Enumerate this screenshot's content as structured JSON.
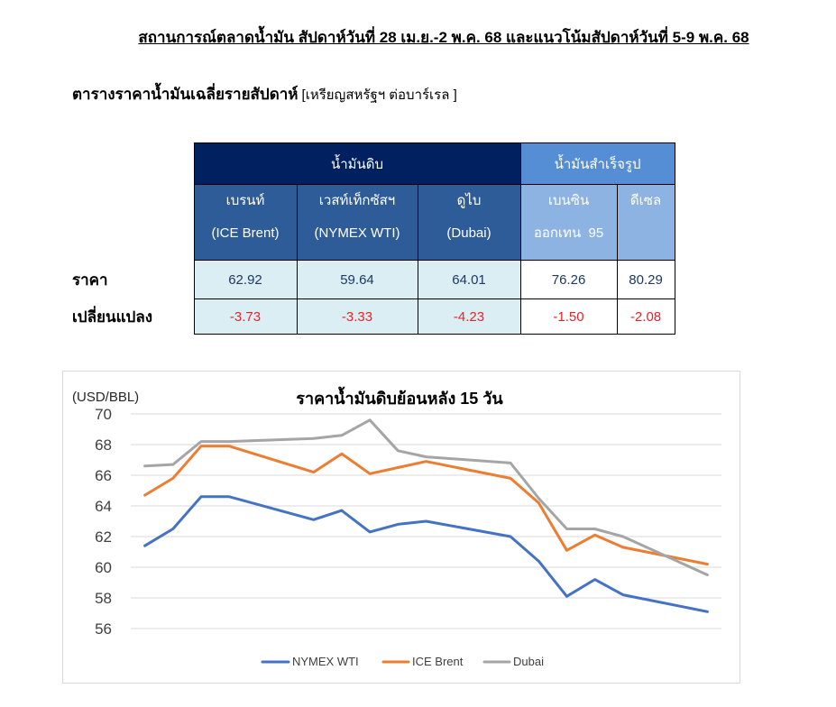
{
  "page": {
    "title": "สถานการณ์ตลาดน้ำมัน สัปดาห์วันที่ 28 เม.ย.-2 พ.ค. 68 และแนวโน้มสัปดาห์วันที่ 5-9 พ.ค. 68"
  },
  "table": {
    "caption": "ตารางราคาน้ำมันเฉลี่ยรายสัปดาห์",
    "unit": "[เหรียญสหรัฐฯ ต่อบาร์เรล ]",
    "groups": [
      {
        "label": "น้ำมันดิบ"
      },
      {
        "label": "น้ำมันสำเร็จรูป"
      }
    ],
    "columns": [
      {
        "line1": "เบรนท์",
        "line2": "(ICE Brent)"
      },
      {
        "line1": "เวสท์เท็กซัสฯ",
        "line2": "(NYMEX WTI)"
      },
      {
        "line1": "ดูไบ",
        "line2": "(Dubai)"
      },
      {
        "line1": "เบนซิน",
        "line2": "ออกเทน  95"
      },
      {
        "line1": "ดีเซล"
      }
    ],
    "rows": [
      {
        "label": "ราคา",
        "values": [
          "62.92",
          "59.64",
          "64.01",
          "76.26",
          "80.29"
        ]
      },
      {
        "label": "เปลี่ยนแปลง",
        "values": [
          "-3.73",
          "-3.33",
          "-4.23",
          "-1.50",
          "-2.08"
        ]
      }
    ],
    "colors": {
      "crude_group": "#002060",
      "refined_group": "#558ed5",
      "crude_column": "#2e5c99",
      "refined_column": "#8db3e2",
      "crude_cell": "#dbeef4",
      "refined_cell": "#ffffff",
      "price_text": "#1f3864",
      "change_text": "#e8232a"
    }
  },
  "chart_data": {
    "type": "line",
    "title": "ราคาน้ำมันดิบย้อนหลัง 15 วัน",
    "ylabel": "(USD/BBL)",
    "ylim": [
      56,
      70
    ],
    "yticks": [
      70,
      68,
      66,
      64,
      62,
      60,
      58,
      56
    ],
    "grid": true,
    "legend": "bottom",
    "series": [
      {
        "name": "NYMEX WTI",
        "color": "#4472c4",
        "values": [
          61.4,
          62.5,
          64.6,
          64.6,
          63.1,
          63.7,
          62.3,
          62.8,
          63.0,
          62.0,
          60.4,
          58.1,
          59.2,
          58.2,
          57.1
        ]
      },
      {
        "name": "ICE Brent",
        "color": "#ed7d31",
        "values": [
          64.7,
          65.8,
          67.9,
          67.9,
          66.2,
          67.4,
          66.1,
          66.5,
          66.9,
          65.8,
          64.2,
          61.1,
          62.1,
          61.3,
          60.2
        ]
      },
      {
        "name": "Dubai",
        "color": "#a5a5a5",
        "values": [
          66.6,
          66.7,
          68.2,
          68.2,
          68.4,
          68.6,
          69.6,
          67.6,
          67.2,
          66.8,
          64.5,
          62.5,
          62.5,
          62.0,
          59.5
        ]
      }
    ]
  }
}
